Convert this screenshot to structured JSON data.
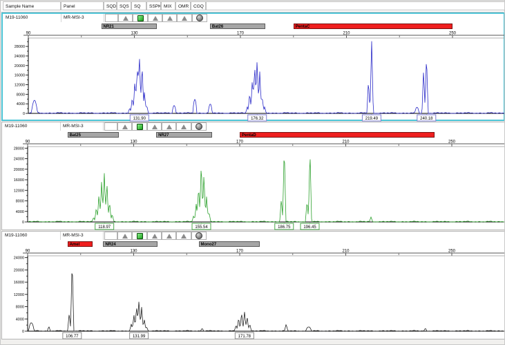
{
  "header": {
    "columns": [
      "Sample Name",
      "Panel",
      "SQD",
      "SQS",
      "SQ",
      "SSPK",
      "MIX",
      "OMR",
      "CGQ"
    ]
  },
  "colors": {
    "selection_border": "#4cc4d6",
    "marker_gray": "#a6a6a6",
    "marker_red": "#ef1f1f",
    "dye_blue": "#2a2ac8",
    "dye_green": "#2da12d",
    "dye_black": "#222222",
    "status_green_square": "#2eb82e",
    "status_triangle_gray": "#8b8b8b"
  },
  "chart_data": [
    {
      "type": "line",
      "dye": "blue",
      "trace_color": "#2a2ac8",
      "label_border": "#7b7bd0",
      "selected": true,
      "sample": "M19-11060",
      "panel_name": "MR-MSI-3",
      "status_icons": [
        "none",
        "triangle",
        "square",
        "triangle",
        "triangle",
        "triangle",
        "sphere"
      ],
      "xlim": [
        90,
        270
      ],
      "x_ticks": [
        90,
        130,
        170,
        210,
        250
      ],
      "x_minor_ticks": [
        110,
        150,
        190,
        230,
        270
      ],
      "ylim": [
        0,
        31500
      ],
      "y_ticks": [
        0,
        4000,
        8000,
        12000,
        16000,
        20000,
        24000,
        28000
      ],
      "grid": false,
      "noise_amp": 450,
      "markers": [
        {
          "label": "NR21",
          "color": "gray",
          "range": [
            117.5,
            138.5
          ]
        },
        {
          "label": "Bat26",
          "color": "gray",
          "range": [
            158.5,
            179.5
          ]
        },
        {
          "label": "PentaC",
          "color": "red",
          "range": [
            190,
            250
          ]
        }
      ],
      "peaks": [
        [
          92.3,
          5200,
          4.5,
          "round"
        ],
        [
          128.2,
          2200
        ],
        [
          129.2,
          6500
        ],
        [
          130.2,
          13500
        ],
        [
          131.1,
          19500
        ],
        [
          131.9,
          24800
        ],
        [
          132.9,
          20500
        ],
        [
          133.8,
          9000
        ],
        [
          134.7,
          3200
        ],
        [
          145,
          3300,
          3,
          "round"
        ],
        [
          152.8,
          5800,
          3,
          "round"
        ],
        [
          158.6,
          3600,
          3,
          "round"
        ],
        [
          172.6,
          2800
        ],
        [
          173.5,
          8500
        ],
        [
          174.5,
          14500
        ],
        [
          175.4,
          20500
        ],
        [
          176.3,
          22800
        ],
        [
          177.3,
          17500
        ],
        [
          178.2,
          7000
        ],
        [
          179.1,
          2400
        ],
        [
          218.3,
          13500
        ],
        [
          219.5,
          30500
        ],
        [
          236.6,
          2400,
          3,
          "round"
        ],
        [
          239.1,
          18200
        ],
        [
          240.2,
          24300
        ]
      ],
      "peak_labels": [
        {
          "bp": 131.9,
          "text": "131.90"
        },
        {
          "bp": 176.32,
          "text": "176.32"
        },
        {
          "bp": 219.49,
          "text": "219.49"
        },
        {
          "bp": 240.18,
          "text": "240.18"
        }
      ]
    },
    {
      "type": "line",
      "dye": "green",
      "trace_color": "#2da12d",
      "label_border": "#4aa64a",
      "selected": false,
      "sample": "M19-11060",
      "panel_name": "MR-MSI-3",
      "status_icons": [
        "none",
        "triangle",
        "square",
        "triangle",
        "triangle",
        "triangle",
        "sphere"
      ],
      "xlim": [
        90,
        270
      ],
      "x_ticks": [
        90,
        130,
        170,
        210,
        250
      ],
      "x_minor_ticks": [
        110,
        150,
        190,
        230,
        270
      ],
      "ylim": [
        0,
        28600
      ],
      "y_ticks": [
        0,
        4000,
        8000,
        12000,
        16000,
        20000,
        24000,
        28000
      ],
      "grid": false,
      "noise_amp": 360,
      "markers": [
        {
          "label": "Bat25",
          "color": "gray",
          "range": [
            105,
            124.5
          ]
        },
        {
          "label": "NR27",
          "color": "gray",
          "range": [
            138.5,
            159.5
          ]
        },
        {
          "label": "PentaD",
          "color": "red",
          "range": [
            170,
            243.5
          ]
        }
      ],
      "peaks": [
        [
          114.9,
          1800
        ],
        [
          115.9,
          5500
        ],
        [
          116.9,
          10500
        ],
        [
          117.9,
          15500
        ],
        [
          118.9,
          19200
        ],
        [
          119.9,
          15000
        ],
        [
          120.9,
          7500
        ],
        [
          121.9,
          2800
        ],
        [
          152.6,
          2400
        ],
        [
          153.6,
          7000
        ],
        [
          154.5,
          13500
        ],
        [
          155.5,
          22800
        ],
        [
          156.5,
          18500
        ],
        [
          157.5,
          9500
        ],
        [
          158.4,
          3600
        ],
        [
          185.7,
          8800
        ],
        [
          186.8,
          28600
        ],
        [
          195.4,
          7800
        ],
        [
          196.5,
          27000
        ],
        [
          219.5,
          1700
        ]
      ],
      "peak_labels": [
        {
          "bp": 118.97,
          "text": "118.97"
        },
        {
          "bp": 155.54,
          "text": "155.54"
        },
        {
          "bp": 186.75,
          "text": "186.75"
        },
        {
          "bp": 196.45,
          "text": "196.45"
        }
      ]
    },
    {
      "type": "line",
      "dye": "black",
      "trace_color": "#222222",
      "label_border": "#8a8a8a",
      "selected": false,
      "sample": "M19-11060",
      "panel_name": "MR-MSI-3",
      "status_icons": [
        "none",
        "triangle",
        "square",
        "triangle",
        "triangle",
        "triangle",
        "sphere"
      ],
      "xlim": [
        90,
        270
      ],
      "x_ticks": [
        90,
        130,
        170,
        210,
        250
      ],
      "x_minor_ticks": [
        110,
        150,
        190,
        230,
        270
      ],
      "ylim": [
        0,
        24600
      ],
      "y_ticks": [
        0,
        4000,
        8000,
        12000,
        16000,
        20000,
        24000
      ],
      "grid": false,
      "noise_amp": 280,
      "markers": [
        {
          "label": "Amel",
          "color": "red",
          "range": [
            105,
            114.5
          ]
        },
        {
          "label": "NR24",
          "color": "gray",
          "range": [
            118.5,
            139
          ]
        },
        {
          "label": "Mono27",
          "color": "gray",
          "range": [
            154.5,
            177.5
          ]
        }
      ],
      "peaks": [
        [
          91.4,
          2700,
          4,
          "round"
        ],
        [
          98,
          1400
        ],
        [
          105.7,
          5800
        ],
        [
          106.8,
          23300
        ],
        [
          129.1,
          2300
        ],
        [
          130.1,
          5200
        ],
        [
          131.1,
          8200
        ],
        [
          132,
          10300
        ],
        [
          133,
          7800
        ],
        [
          134,
          3800
        ],
        [
          134.9,
          1400
        ],
        [
          155.8,
          900
        ],
        [
          168.6,
          1900
        ],
        [
          169.6,
          4300
        ],
        [
          170.7,
          5900
        ],
        [
          171.8,
          6400
        ],
        [
          172.8,
          4800
        ],
        [
          173.8,
          2300
        ],
        [
          187.5,
          2100
        ],
        [
          196,
          1300,
          4,
          "round"
        ],
        [
          240,
          800
        ]
      ],
      "peak_labels": [
        {
          "bp": 106.77,
          "text": "106.77"
        },
        {
          "bp": 131.99,
          "text": "131.99"
        },
        {
          "bp": 171.78,
          "text": "171.78"
        }
      ]
    }
  ]
}
